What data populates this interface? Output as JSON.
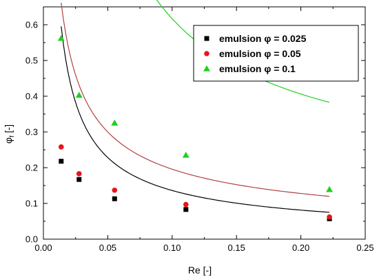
{
  "chart_data": {
    "type": "scatter",
    "xlabel": "Re [-]",
    "ylabel": "φf [-]",
    "ylabel_main": "φ",
    "ylabel_sub": "f",
    "ylabel_tail": " [-]",
    "xlim": [
      0.0,
      0.25
    ],
    "ylim": [
      0.0,
      0.65
    ],
    "xticks": [
      0.0,
      0.05,
      0.1,
      0.15,
      0.2,
      0.25
    ],
    "xtick_labels": [
      "0.00",
      "0.05",
      "0.10",
      "0.15",
      "0.20",
      "0.25"
    ],
    "yticks": [
      0.0,
      0.1,
      0.2,
      0.3,
      0.4,
      0.5,
      0.6
    ],
    "ytick_labels": [
      "0.0",
      "0.1",
      "0.2",
      "0.3",
      "0.4",
      "0.5",
      "0.6"
    ],
    "grid": false,
    "legend_position": "top-right",
    "series": [
      {
        "name": "emulsion φ = 0.025",
        "marker": "square",
        "color": "#000000",
        "fit_color": "#000000",
        "x": [
          0.0138,
          0.0277,
          0.0553,
          0.1107,
          0.2222
        ],
        "y": [
          0.218,
          0.167,
          0.113,
          0.083,
          0.057
        ],
        "fit": {
          "a": 0.0245,
          "b": -0.745
        }
      },
      {
        "name": "emulsion φ = 0.05",
        "marker": "circle",
        "color": "#e8141b",
        "fit_color": "#b04040",
        "x": [
          0.0138,
          0.0277,
          0.0553,
          0.1107,
          0.2222
        ],
        "y": [
          0.258,
          0.183,
          0.137,
          0.097,
          0.062
        ],
        "fit": {
          "a": 0.0475,
          "b": -0.615
        }
      },
      {
        "name": "emulsion φ = 0.1",
        "marker": "triangle",
        "color": "#1fd01f",
        "fit_color": "#1fd01f",
        "x": [
          0.0138,
          0.0277,
          0.0553,
          0.1107,
          0.2222
        ],
        "y": [
          0.562,
          0.403,
          0.325,
          0.235,
          0.139
        ],
        "fit": {
          "a": 0.0895,
          "b": -0.76,
          "c": 0.102
        }
      }
    ]
  }
}
